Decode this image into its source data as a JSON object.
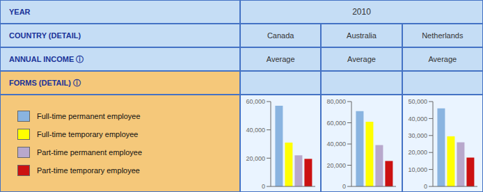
{
  "chart_data": [
    {
      "type": "bar",
      "title": "Canada",
      "subtitle": "Average",
      "annotations": [
        "YEAR",
        "COUNTRY (DETAIL)",
        "ANNUAL INCOME ⓘ",
        "FORMS (DETAIL) ⓘ",
        "2010"
      ],
      "categories": [
        null
      ],
      "series": [
        {
          "name": "Full-time permanent employee",
          "color": "#8ab4e0",
          "values": [
            57000
          ]
        },
        {
          "name": "Full-time temporary employee",
          "color": "#ffff00",
          "values": [
            31000
          ]
        },
        {
          "name": "Part-time permanent employee",
          "color": "#b8a8cc",
          "values": [
            22000
          ]
        },
        {
          "name": "Part-time temporary employee",
          "color": "#cc1111",
          "values": [
            19500
          ]
        }
      ],
      "ylim": [
        0,
        60000
      ],
      "yticks": [
        0,
        {
          "value": 20000,
          "label": "20,000"
        },
        {
          "value": 40000,
          "label": "40,000"
        },
        {
          "value": 60000,
          "label": "60,000"
        }
      ],
      "grid": false,
      "legend": "left",
      "tick_labels": "y"
    },
    {
      "type": "bar",
      "title": "Australia",
      "subtitle": "Average",
      "categories": [
        null
      ],
      "series": [
        {
          "name": "Full-time permanent employee",
          "color": "#8ab4e0",
          "values": [
            71000
          ]
        },
        {
          "name": "Full-time temporary employee",
          "color": "#ffff00",
          "values": [
            61000
          ]
        },
        {
          "name": "Part-time permanent employee",
          "color": "#b8a8cc",
          "values": [
            39000
          ]
        },
        {
          "name": "Part-time temporary employee",
          "color": "#cc1111",
          "values": [
            24000
          ]
        }
      ],
      "ylim": [
        0,
        80000
      ],
      "yticks": [
        0,
        {
          "value": 20000,
          "label": "20,000"
        },
        {
          "value": 40000,
          "label": "40,000"
        },
        {
          "value": 60000,
          "label": "60,000"
        },
        {
          "value": 80000,
          "label": "80,000"
        }
      ],
      "grid": false,
      "legend": "left",
      "tick_labels": "y"
    },
    {
      "type": "bar",
      "title": "Netherlands",
      "subtitle": "Average",
      "categories": [
        null
      ],
      "series": [
        {
          "name": "Full-time permanent employee",
          "color": "#8ab4e0",
          "values": [
            46000
          ]
        },
        {
          "name": "Full-time temporary employee",
          "color": "#ffff00",
          "values": [
            29500
          ]
        },
        {
          "name": "Part-time permanent employee",
          "color": "#b8a8cc",
          "values": [
            26000
          ]
        },
        {
          "name": "Part-time temporary employee",
          "color": "#cc1111",
          "values": [
            17000
          ]
        }
      ],
      "ylim": [
        0,
        50000
      ],
      "yticks": [
        0,
        {
          "value": 10000,
          "label": "10,000"
        },
        {
          "value": 20000,
          "label": "20,000"
        },
        {
          "value": 30000,
          "label": "30,000"
        },
        {
          "value": 40000,
          "label": "40,000"
        },
        {
          "value": 50000,
          "label": "50,000"
        }
      ],
      "grid": false,
      "legend": "left",
      "tick_labels": "y"
    }
  ]
}
